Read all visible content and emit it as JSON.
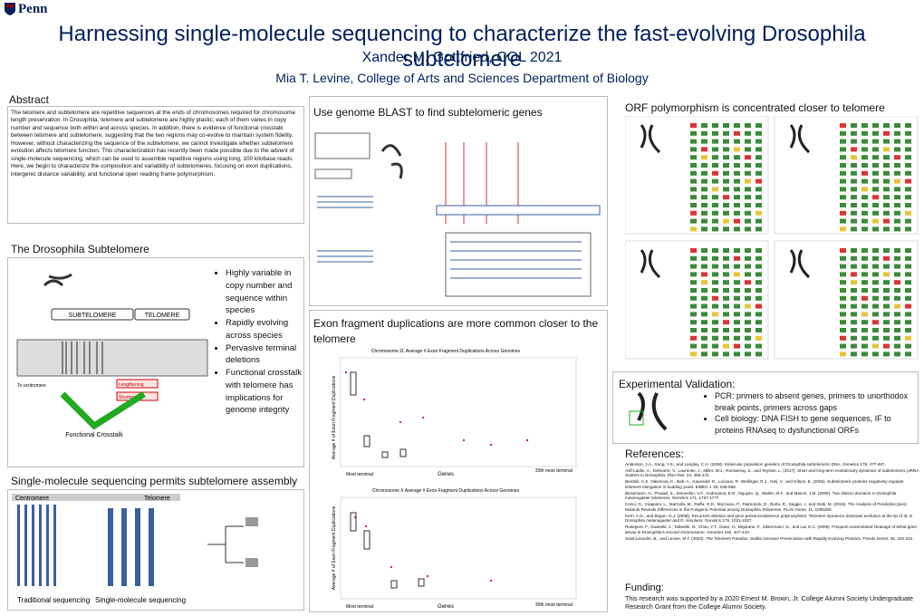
{
  "header": {
    "logo": "Penn",
    "title": "Harnessing single-molecule sequencing to characterize the fast-evolving Drosophila subtelomere",
    "author": "Xander M. Gottfried, COL 2021",
    "advisor": "Mia T. Levine, College of Arts and Sciences Department of Biology"
  },
  "abstract": {
    "heading": "Abstract",
    "text": "The telomere and subtelomere are repetitive sequences at the ends of chromosomes required for chromosome length preservation. In Drosophila, telomere and subtelomere are highly plastic; each of them varies in copy number and sequence both within and across species. In addition, there is evidence of functional crosstalk between telomere and subtelomere, suggesting that the two regions may co-evolve to maintain system fidelity. However, without characterizing the sequence of the subtelomere, we cannot investigate whether subtelomere evolution affects telomere function. This characterization has recently been made possible due to the advent of single-molecule sequencing, which can be used to assemble repetitive regions using long, 100 kilobase reads. Here, we begin to characterize the composition and variability of subtelomeres, focusing on exon duplications, intergenic distance variability, and functional open reading frame polymorphism."
  },
  "subtelomere": {
    "heading": "The Drosophila Subtelomere",
    "bullets": [
      "Highly variable in copy number and sequence within species",
      "Rapidly evolving across species",
      "Pervasive terminal deletions",
      "Functional crosstalk with telomere has implications for genome integrity"
    ],
    "labels": {
      "sub": "SUBTELOMERE",
      "tel": "TELOMERE",
      "centromere": "To centromere",
      "lengthening": "Lengthening",
      "shortening": "Shortening",
      "crosstalk": "Functional Crosstalk"
    }
  },
  "sequencing": {
    "heading": "Single-molecule sequencing permits subtelomere assembly",
    "centromere": "Centromere",
    "telomere": "Telomere",
    "traditional": "Traditional sequencing",
    "single": "Single-molecule sequencing"
  },
  "blast": {
    "heading": "Use genome BLAST to find subtelomeric genes"
  },
  "exon": {
    "heading": "Exon fragment duplications are more common closer to the telomere",
    "charts": [
      {
        "title": "Chromosome 2L Average # Exon Fragment Duplications Across Genomes",
        "ylabel": "Average # of Exon Fragment Duplications",
        "xleft": "Most terminal",
        "xmid": "Genes",
        "xright": "20th most terminal"
      },
      {
        "title": "Chromosome X Average # Exon Fragment Duplications Across Genomes",
        "ylabel": "Average # of Exon Fragment Duplications",
        "xleft": "Most terminal",
        "xmid": "Genes",
        "xright": "30th most terminal"
      }
    ]
  },
  "orf": {
    "heading": "ORF polymorphism is concentrated closer to telomere"
  },
  "validation": {
    "heading": "Experimental Validation:",
    "bullets": [
      "PCR: primers to absent genes, primers to unorthodox break points, primers across gaps",
      "Cell biology: DNA FISH to gene sequences, IF to proteins RNAseq to dysfunctional ORFs"
    ]
  },
  "references": {
    "heading": "References:",
    "items": [
      "Anderson, J.A., Song, Y.S., and Langley, C.H. (2008). Molecular population genetics of Drosophila subtelomeric DNA. Genetics 178, 477-487.",
      "Asif-Laidin, A., Delmarre, V., Laurentie, J., Miller, W.J., Ronsseray, S., and Teysset, L. (2017). Short and long-term evolutionary dynamics of subtelomeric piRNA clusters in Drosophila. DNA Res. 24, 459-472.",
      "Berdnik, A.S. Yakimova, K., Bah, A., Kavandel, E., Luciano, P., Wellinger, R.J., Geli, V., and Gilson, E. (2006). Subtelomeric proteins negatively regulate telomere elongation in budding yeast. EMBO J. 25, 846-856.",
      "Biessmann, H., Prasad, S., Semeshin, V.F., Andreyeva, E.N., Nguyen, Q., Walter, M.F., and Mason, J.M. (2005). Two distinct domains in Drosophila melanogaster telomeres. Genetics 171, 1767-1777.",
      "Cenci, G., Ciapponi, L., Marzullo, M., Raffa, G.D., Morciano, P., Raimondo, D., Burla, R., Saggio, I., and Gatti, M. (2015). The Analysis of Pendolino (peo) Mutants Reveals Differences in the Fusigenic Potential among Drosophila Telomeres. PLoS Genet. 11, 1005260.",
      "Kern, A.D., and Begun, D.J. (2008). Recurrent deletion and gene presence/absence polymorphism: Telomere dynamics dominate evolution at the tip of 3L in Drosophila melanogaster and D. simulans. Genetics 179, 1021-1027.",
      "Rosegers, F., Kaweski, J., Takwiski, N., Chou, Y.T., Duan, H., Bejarano, F., Zitsermann, D., and Lai, E.C. (2009). Frequent unannotated cleavage of lethal giant larvae in Drosophila's second chromosome. Genetics 182, 407-410.",
      "Saint-Leandre, B., and Levine, M.T. (2020). The Telomere Paradox: Stable Genome Preservation with Rapidly Evolving Proteins. Trends Genet. 36, 232-242."
    ]
  },
  "funding": {
    "heading": "Funding:",
    "text": "This research was supported by a 2020 Ernest M. Brown, Jr. College Alumni Society Undergraduate Research Grant from the College Alumni Society."
  }
}
